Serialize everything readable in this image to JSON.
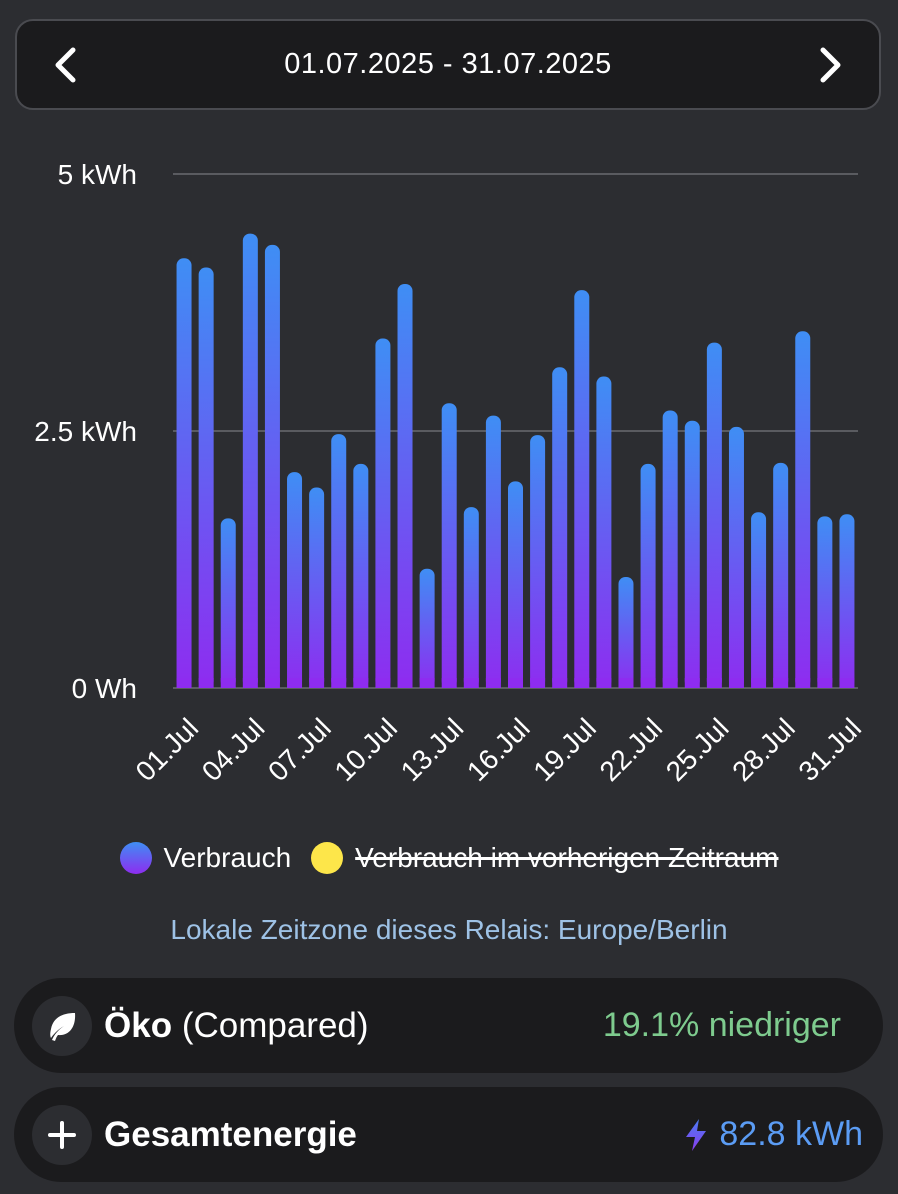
{
  "header": {
    "date_range": "01.07.2025 - 31.07.2025",
    "prev_icon": "chevron-left-icon",
    "next_icon": "chevron-right-icon"
  },
  "chart_data": {
    "type": "bar",
    "unit": "kWh",
    "y_ticks": [
      "5 kWh",
      "2.5 kWh",
      "0 Wh"
    ],
    "y_tick_values": [
      5,
      2.5,
      0
    ],
    "ylim": [
      0,
      5
    ],
    "grid": true,
    "categories": [
      "01.Jul",
      "02.Jul",
      "03.Jul",
      "04.Jul",
      "05.Jul",
      "06.Jul",
      "07.Jul",
      "08.Jul",
      "09.Jul",
      "10.Jul",
      "11.Jul",
      "12.Jul",
      "13.Jul",
      "14.Jul",
      "15.Jul",
      "16.Jul",
      "17.Jul",
      "18.Jul",
      "19.Jul",
      "20.Jul",
      "21.Jul",
      "22.Jul",
      "23.Jul",
      "24.Jul",
      "25.Jul",
      "26.Jul",
      "27.Jul",
      "28.Jul",
      "29.Jul",
      "30.Jul",
      "31.Jul"
    ],
    "x_tick_labels": [
      "01.Jul",
      "04.Jul",
      "07.Jul",
      "10.Jul",
      "13.Jul",
      "16.Jul",
      "19.Jul",
      "22.Jul",
      "25.Jul",
      "28.Jul",
      "31.Jul"
    ],
    "series": [
      {
        "name": "Verbrauch",
        "values": [
          4.18,
          4.09,
          1.65,
          4.42,
          4.31,
          2.1,
          1.95,
          2.47,
          2.18,
          3.4,
          3.93,
          1.16,
          2.77,
          1.76,
          2.65,
          2.01,
          2.46,
          3.12,
          3.87,
          3.03,
          1.08,
          2.18,
          2.7,
          2.6,
          3.36,
          2.54,
          1.71,
          2.19,
          3.47,
          1.67,
          1.69
        ]
      }
    ],
    "colors": {
      "bar_top": "#3f8ef4",
      "bar_bottom": "#8e2cf0",
      "grid": "#5a5b60"
    }
  },
  "legend": {
    "items": [
      {
        "label": "Verbrauch",
        "color": "#3f8ef4",
        "active": true
      },
      {
        "label": "Verbrauch im vorherigen Zeitraum",
        "color": "#fde64a",
        "active": false
      }
    ]
  },
  "timezone_note": "Lokale Zeitzone dieses Relais: Europe/Berlin",
  "eco_card": {
    "icon": "leaf-icon",
    "title": "Öko",
    "subtitle": "(Compared)",
    "value": "19.1% niedriger",
    "value_color": "#7ecb8e"
  },
  "total_card": {
    "icon": "plus-icon",
    "title": "Gesamtenergie",
    "value_icon": "lightning-bolt-icon",
    "value": "82.8 kWh",
    "value_color": "#5b9cf4"
  }
}
